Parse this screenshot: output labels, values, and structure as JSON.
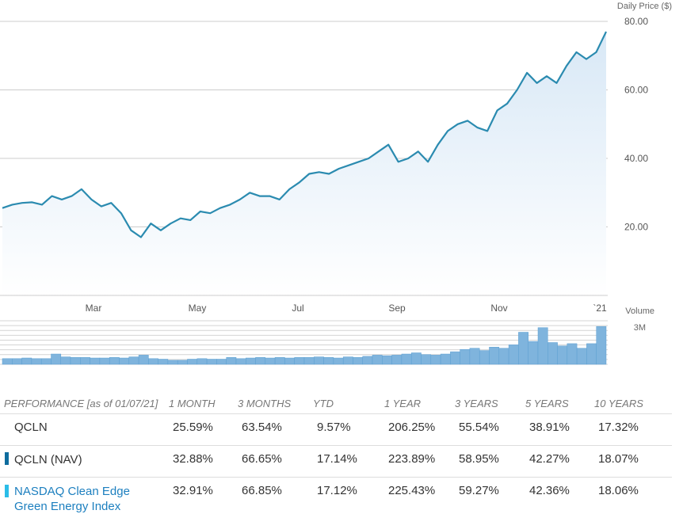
{
  "chart_data": {
    "type": "line",
    "ylabel": "Daily Price ($)",
    "ylim": [
      0,
      80
    ],
    "yticks": [
      "20.00",
      "40.00",
      "60.00",
      "80.00"
    ],
    "xticks": [
      "Mar",
      "May",
      "Jul",
      "Sep",
      "Nov",
      "`21"
    ],
    "line_color": "#2b8bb0",
    "area_color": "#dcebf7",
    "series": [
      {
        "values": [
          25.5,
          26.5,
          27,
          27.2,
          26.5,
          29,
          28,
          29,
          31,
          28,
          26,
          27,
          24,
          19,
          17,
          21,
          19,
          21,
          22.5,
          22,
          24.5,
          24,
          25.5,
          26.5,
          28,
          30,
          29,
          29,
          28,
          31,
          33,
          35.5,
          36,
          35.5,
          37,
          38,
          39,
          40,
          42,
          44,
          39,
          40,
          42,
          39,
          44,
          48,
          50,
          51,
          49,
          48,
          54,
          56,
          60,
          65,
          62,
          64,
          62,
          67,
          71,
          69,
          71,
          77
        ]
      }
    ],
    "volume": {
      "ylabel": "Volume",
      "tick": "3M",
      "max": 3.8,
      "values": [
        0.5,
        0.5,
        0.55,
        0.5,
        0.5,
        0.9,
        0.65,
        0.6,
        0.6,
        0.55,
        0.55,
        0.6,
        0.55,
        0.65,
        0.8,
        0.5,
        0.45,
        0.35,
        0.35,
        0.45,
        0.5,
        0.45,
        0.45,
        0.6,
        0.5,
        0.55,
        0.6,
        0.55,
        0.6,
        0.55,
        0.6,
        0.6,
        0.65,
        0.6,
        0.55,
        0.65,
        0.6,
        0.7,
        0.8,
        0.75,
        0.8,
        0.9,
        1.0,
        0.85,
        0.8,
        0.9,
        1.1,
        1.3,
        1.4,
        1.2,
        1.5,
        1.4,
        1.7,
        2.8,
        2.0,
        3.2,
        1.9,
        1.6,
        1.8,
        1.4,
        1.8,
        3.3
      ]
    }
  },
  "performance": {
    "header": "PERFORMANCE",
    "as_of": "[as of 01/07/21]",
    "columns": [
      "1 MONTH",
      "3 MONTHS",
      "YTD",
      "1 YEAR",
      "3 YEARS",
      "5 YEARS",
      "10 YEARS"
    ],
    "rows": [
      {
        "name": "QCLN",
        "swatch": "",
        "values": [
          "25.59%",
          "63.54%",
          "9.57%",
          "206.25%",
          "55.54%",
          "38.91%",
          "17.32%"
        ]
      },
      {
        "name": "QCLN (NAV)",
        "swatch": "#0e6c9e",
        "values": [
          "32.88%",
          "66.65%",
          "17.14%",
          "223.89%",
          "58.95%",
          "42.27%",
          "18.07%"
        ]
      },
      {
        "name": "NASDAQ Clean Edge Green Energy Index",
        "swatch": "#2bbde8",
        "values": [
          "32.91%",
          "66.85%",
          "17.12%",
          "225.43%",
          "59.27%",
          "42.36%",
          "18.06%"
        ]
      }
    ]
  }
}
